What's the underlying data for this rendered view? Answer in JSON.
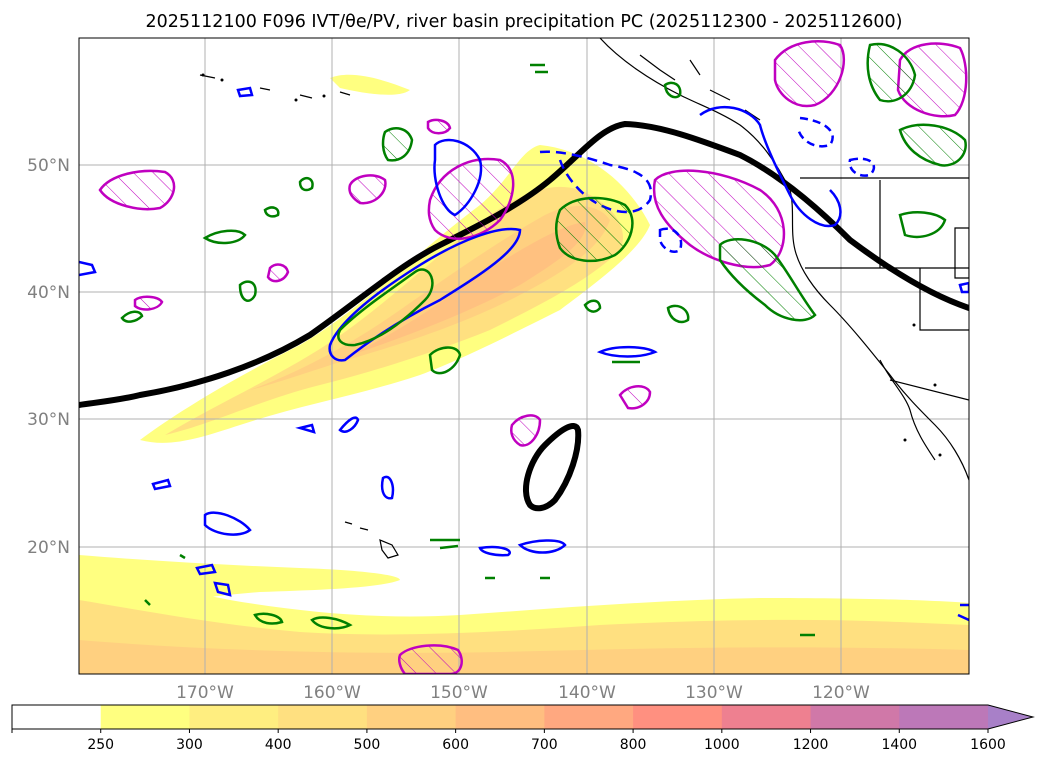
{
  "title": {
    "text": "2025112100 F096 IVT/θe/PV, river basin precipitation PC (2025112300 - 2025112600)"
  },
  "axes": {
    "lat_labels": [
      "50°N",
      "40°N",
      "30°N",
      "20°N"
    ],
    "lon_labels": [
      "170°W",
      "160°W",
      "150°W",
      "140°W",
      "130°W",
      "120°W"
    ]
  },
  "colorbar": {
    "levels": [
      "250",
      "300",
      "400",
      "500",
      "600",
      "700",
      "800",
      "1000",
      "1200",
      "1400",
      "1600"
    ],
    "colors": [
      "#ffffff",
      "#ffff80",
      "#ffee80",
      "#ffe080",
      "#ffd080",
      "#ffbe80",
      "#ffa880",
      "#ff9080",
      "#ee8090",
      "#d078a8",
      "#bc78b8",
      "#a880c8"
    ],
    "extend": "max"
  },
  "colors": {
    "ivt_low": "#ffff80",
    "ivt_mid": "#ffe080",
    "ivt_high": "#ffbe80",
    "theta_e": "#000000",
    "pv_magenta": "#c000c0",
    "pv_blue": "#0000ff",
    "precip_green": "#008000"
  }
}
